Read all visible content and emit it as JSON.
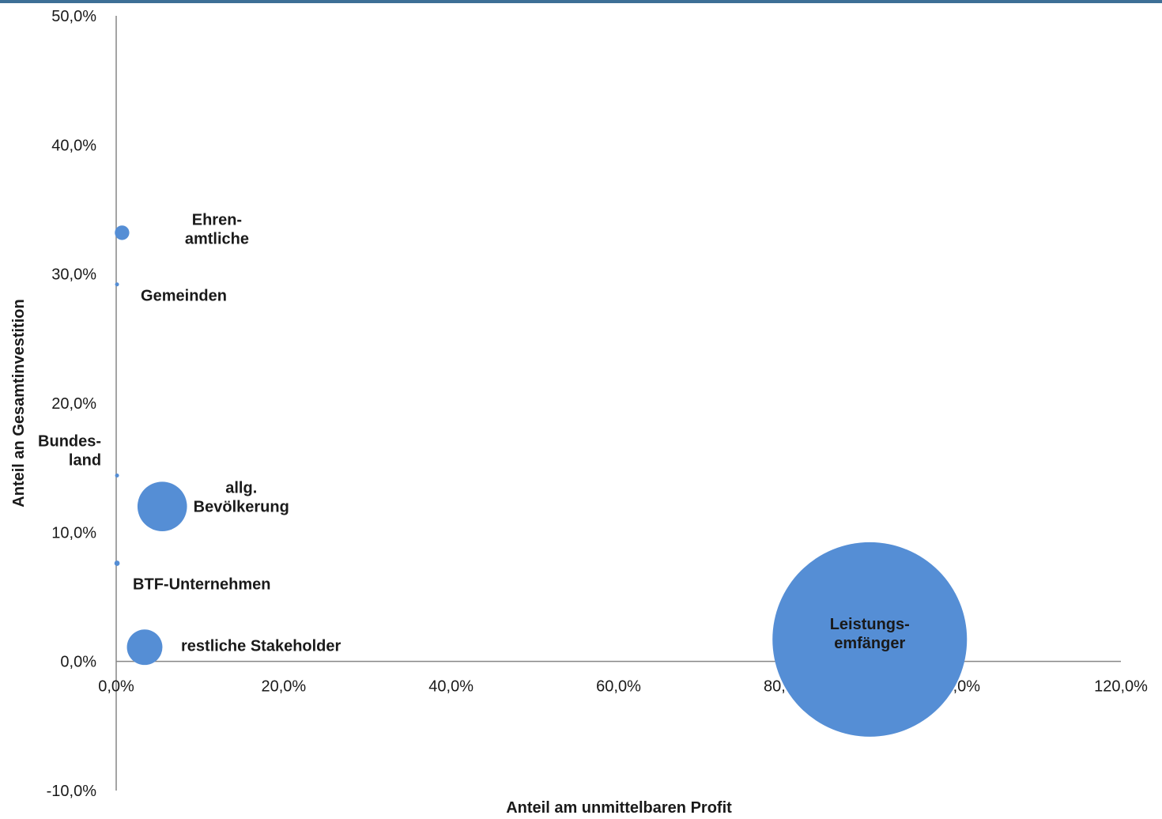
{
  "chart_data": {
    "type": "scatter",
    "variant": "bubble",
    "title": "",
    "xlabel": "Anteil am unmittelbaren Profit",
    "ylabel": "Anteil  an Gesamtinvestition",
    "xlim": [
      0,
      120
    ],
    "ylim": [
      -10,
      50
    ],
    "x_ticks": [
      "0,0%",
      "20,0%",
      "40,0%",
      "60,0%",
      "80,0%",
      "100,0%",
      "120,0%"
    ],
    "y_ticks": [
      "-10,0%",
      "0,0%",
      "10,0%",
      "20,0%",
      "30,0%",
      "40,0%",
      "50,0%"
    ],
    "grid": false,
    "legend": "none",
    "color": "#558ed5",
    "points": [
      {
        "label": [
          "Ehren-",
          "amtliche"
        ],
        "x": 0.7,
        "y": 33.2,
        "size": 0.3
      },
      {
        "label": [
          "Gemeinden"
        ],
        "x": 0.1,
        "y": 29.2,
        "size": 0.01
      },
      {
        "label": [
          "Bundes-",
          "land"
        ],
        "x": 0.1,
        "y": 14.4,
        "size": 0.005
      },
      {
        "label": [
          "allg.",
          "Bevölkerung"
        ],
        "x": 5.5,
        "y": 12.0,
        "size": 3.5
      },
      {
        "label": [
          "BTF-Unternehmen"
        ],
        "x": 0.1,
        "y": 7.6,
        "size": 0.04
      },
      {
        "label": [
          "restliche Stakeholder"
        ],
        "x": 3.4,
        "y": 1.1,
        "size": 1.8
      },
      {
        "label": [
          "Leistungs-",
          "emfänger"
        ],
        "x": 90.0,
        "y": 1.7,
        "size": 54.0
      }
    ]
  }
}
